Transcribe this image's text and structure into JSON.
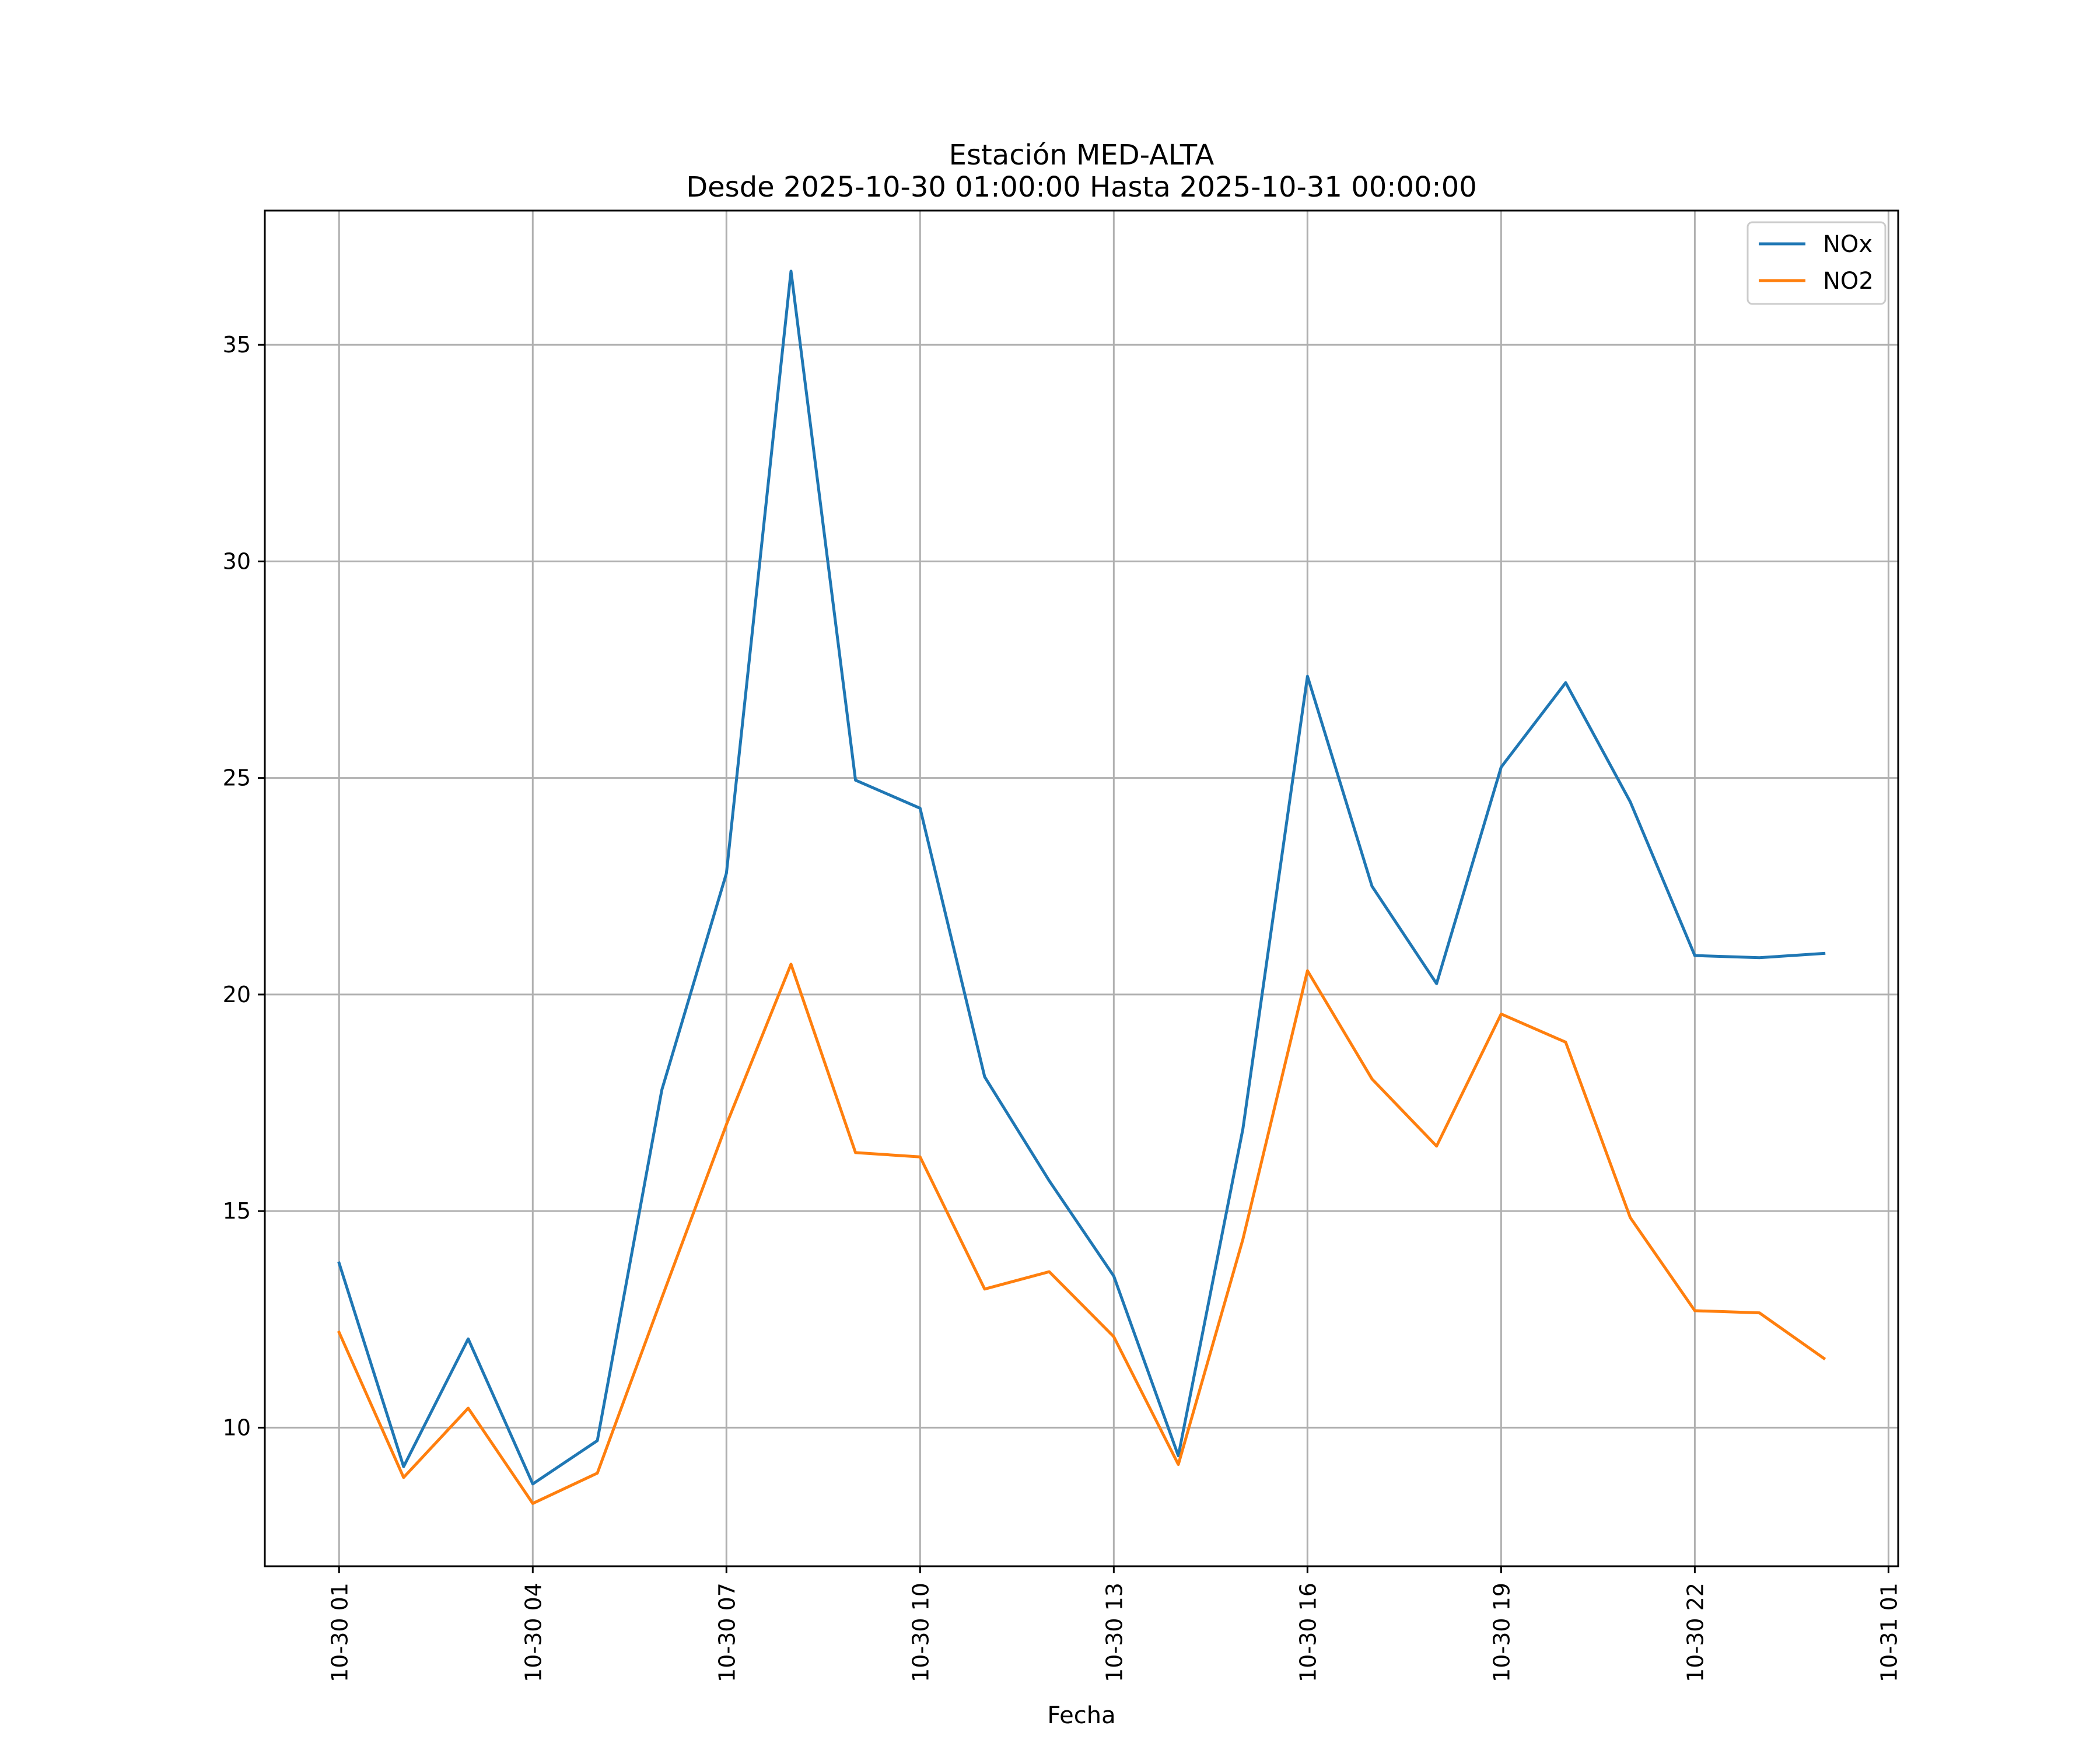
{
  "chart_data": {
    "type": "line",
    "title": "Estación MED-ALTA",
    "subtitle": "Desde 2025-10-30 01:00:00 Hasta 2025-10-31 00:00:00",
    "xlabel": "Fecha",
    "ylabel": "",
    "x_hours": [
      1,
      2,
      3,
      4,
      5,
      6,
      7,
      8,
      9,
      10,
      11,
      12,
      13,
      14,
      15,
      16,
      17,
      18,
      19,
      20,
      21,
      22,
      23,
      24
    ],
    "xlim": [
      -0.15,
      25.15
    ],
    "xticks": [
      {
        "hour": 1,
        "label": "10-30 01"
      },
      {
        "hour": 4,
        "label": "10-30 04"
      },
      {
        "hour": 7,
        "label": "10-30 07"
      },
      {
        "hour": 10,
        "label": "10-30 10"
      },
      {
        "hour": 13,
        "label": "10-30 13"
      },
      {
        "hour": 16,
        "label": "10-30 16"
      },
      {
        "hour": 19,
        "label": "10-30 19"
      },
      {
        "hour": 22,
        "label": "10-30 22"
      },
      {
        "hour": 25,
        "label": "10-31 01"
      }
    ],
    "ylim": [
      6.8,
      38.1
    ],
    "yticks": [
      10,
      15,
      20,
      25,
      30,
      35
    ],
    "grid": true,
    "legend": "top-right",
    "series": [
      {
        "name": "NOx",
        "color": "#1f77b4",
        "values": [
          13.8,
          9.1,
          12.05,
          8.7,
          9.7,
          17.8,
          22.8,
          36.7,
          24.95,
          24.3,
          18.1,
          15.7,
          13.5,
          9.35,
          16.9,
          27.35,
          22.5,
          20.25,
          25.25,
          27.2,
          24.45,
          20.9,
          20.85,
          20.95
        ]
      },
      {
        "name": "NO2",
        "color": "#ff7f0e",
        "values": [
          12.2,
          8.85,
          10.45,
          8.25,
          8.95,
          13.0,
          17.0,
          20.7,
          16.35,
          16.25,
          13.2,
          13.6,
          12.1,
          9.15,
          14.35,
          20.55,
          18.05,
          16.5,
          19.55,
          18.9,
          14.85,
          12.7,
          12.65,
          11.6
        ]
      }
    ]
  }
}
